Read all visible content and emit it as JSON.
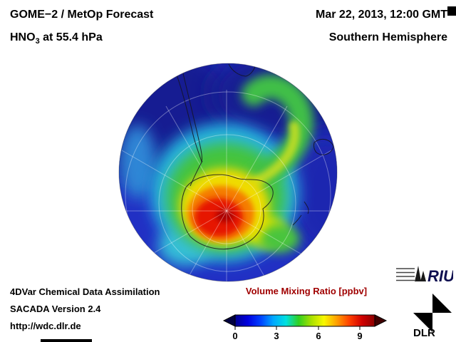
{
  "header": {
    "title": "GOME−2 / MetOp Forecast",
    "subtitle_base": "HNO",
    "subtitle_sub": "3",
    "subtitle_rest": " at 55.4 hPa",
    "datetime": "Mar 22, 2013, 12:00 GMT",
    "hemisphere": "Southern Hemisphere"
  },
  "footer": {
    "line1": "4DVar Chemical Data Assimilation",
    "line2": "SACADA Version 2.4",
    "line3": "http://wdc.dlr.de"
  },
  "colorbar": {
    "label": "Volume Mixing Ratio [ppbv]",
    "label_color": "#a00000",
    "ticks": [
      "0",
      "3",
      "6",
      "9"
    ],
    "palette": [
      "#000090",
      "#0000e0",
      "#0040ff",
      "#00a8ff",
      "#00e0e0",
      "#30d020",
      "#a8e000",
      "#f8f800",
      "#ffa000",
      "#ff4000",
      "#d00000",
      "#8b0000"
    ]
  },
  "logos": {
    "riu_text": "RIU",
    "dlr_text": "DLR"
  },
  "chart_data": {
    "type": "heatmap",
    "title": "GOME−2 / MetOp Forecast — HNO3 at 55.4 hPa",
    "timestamp": "Mar 22, 2013, 12:00 GMT",
    "projection": "Southern Hemisphere orthographic view, South Pole centered",
    "variable": "HNO3 volume mixing ratio",
    "units": "ppbv",
    "colorbar_range": [
      0,
      10
    ],
    "colorbar_ticks": [
      0,
      3,
      6,
      9
    ],
    "legend_position": "bottom center",
    "map_features": [
      "Antarctica coastline",
      "South America southern tip",
      "southern Africa tip",
      "Australia (near limb)",
      "New Zealand",
      "latitude-longitude graticule"
    ],
    "regions": [
      {
        "region": "dark red core over Antarctica (polar vortex maximum)",
        "approx_value_ppbv": 9
      },
      {
        "region": "red core over Antarctic interior",
        "approx_value_ppbv": 8
      },
      {
        "region": "orange collar around core",
        "approx_value_ppbv": 7
      },
      {
        "region": "yellow ring near Antarctic coast",
        "approx_value_ppbv": 5.5
      },
      {
        "region": "green band and spiral arm curling toward mid-latitudes (upper right)",
        "approx_value_ppbv": 4
      },
      {
        "region": "cyan band around 60S",
        "approx_value_ppbv": 3
      },
      {
        "region": "mid-latitude blue background",
        "approx_value_ppbv": 1.5
      },
      {
        "region": "dark blue subtropical minimum near limb (upper left and upper right)",
        "approx_value_ppbv": 0.5
      }
    ]
  }
}
